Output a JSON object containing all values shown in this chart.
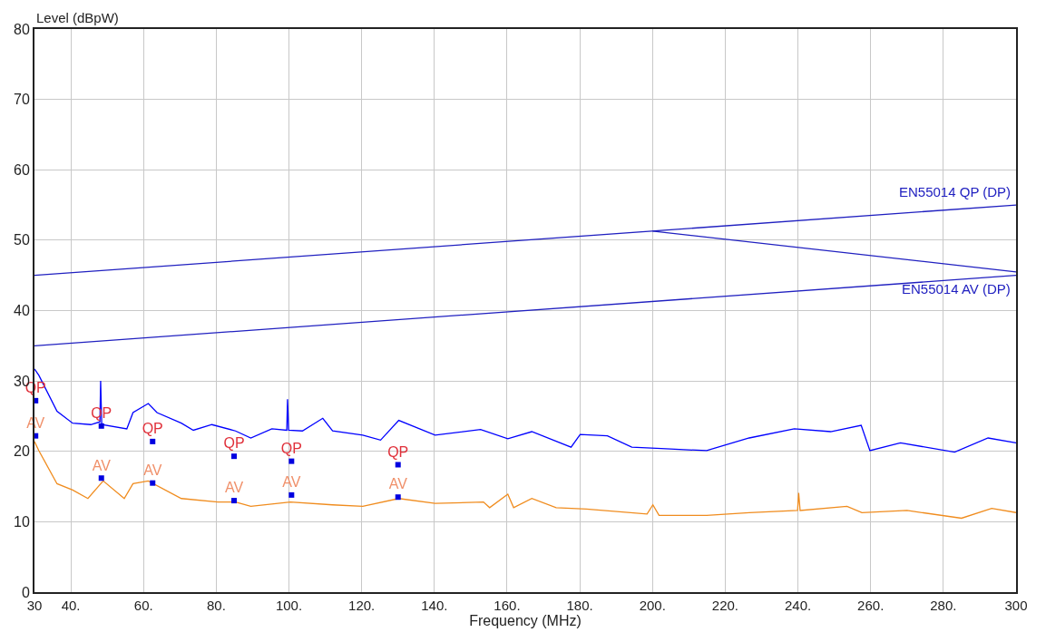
{
  "chart_data": {
    "type": "line",
    "xlabel": "Frequency (MHz)",
    "ylabel": "Level (dBpW)",
    "xlim": [
      30,
      300
    ],
    "ylim": [
      0,
      80
    ],
    "xticks": [
      30,
      {
        "value": 40,
        "label": "40."
      },
      {
        "value": 60,
        "label": "60."
      },
      {
        "value": 80,
        "label": "80."
      },
      {
        "value": 100,
        "label": "100."
      },
      {
        "value": 120,
        "label": "120."
      },
      {
        "value": 140,
        "label": "140."
      },
      {
        "value": 160,
        "label": "160."
      },
      {
        "value": 180,
        "label": "180."
      },
      {
        "value": 200,
        "label": "200."
      },
      {
        "value": 220,
        "label": "220."
      },
      {
        "value": 240,
        "label": "240."
      },
      {
        "value": 260,
        "label": "260."
      },
      {
        "value": 280,
        "label": "280."
      },
      300
    ],
    "yticks": [
      0,
      10,
      20,
      30,
      40,
      50,
      60,
      70,
      80
    ],
    "grid": true,
    "legend": false,
    "marker": "none",
    "line_style": "solid",
    "series": [
      {
        "name": "EN55014 QP (DP)",
        "color": "#2020c0",
        "x": [
          30,
          300
        ],
        "values": [
          45,
          55
        ]
      },
      {
        "name": "EN55014 AV (DP)",
        "color": "#2020c0",
        "x": [
          30,
          300
        ],
        "values": [
          35,
          45
        ]
      },
      {
        "color": "#2020c0",
        "x": [
          200,
          300
        ],
        "values": [
          51.3,
          45.5
        ]
      },
      {
        "color": "#0000ff",
        "x": [
          30,
          31.2,
          36.2,
          40.5,
          45.5,
          48.0,
          48.2,
          48.5,
          55.4,
          57.1,
          61.3,
          63.7,
          70.4,
          73.7,
          78.8,
          85.3,
          89.5,
          95.3,
          99.4,
          99.6,
          99.9,
          103.7,
          109.3,
          112,
          120.3,
          125.2,
          130.2,
          140.2,
          152.7,
          160.2,
          166.8,
          177.6,
          180.1,
          187.6,
          194.3,
          202.4,
          214.9,
          226.6,
          239,
          249,
          257.4,
          259.8,
          268.2,
          283.1,
          292.3,
          300
        ],
        "values": [
          31.7,
          30.8,
          25.7,
          24.0,
          23.8,
          24.2,
          30.0,
          23.8,
          23.2,
          25.5,
          26.8,
          25.5,
          24.0,
          23.0,
          23.8,
          22.9,
          21.9,
          23.2,
          23.0,
          27.4,
          23.0,
          22.9,
          24.7,
          22.9,
          22.3,
          21.6,
          24.4,
          22.3,
          23.1,
          21.8,
          22.8,
          20.6,
          22.4,
          22.2,
          20.6,
          20.4,
          20.1,
          21.9,
          23.2,
          22.8,
          23.7,
          20.1,
          21.2,
          19.9,
          21.9,
          21.2
        ]
      },
      {
        "color": "#f08c1e",
        "x": [
          30,
          31.2,
          36.2,
          40.5,
          44.7,
          48.9,
          54.7,
          57.1,
          61.3,
          70.4,
          80.4,
          85.3,
          89.5,
          100.4,
          112,
          120.3,
          130.2,
          140.2,
          153.5,
          155.2,
          160.2,
          161.8,
          166.8,
          173.5,
          181.8,
          198.5,
          200.1,
          201.8,
          214.9,
          226.6,
          239.9,
          240.2,
          240.6,
          253.5,
          257.6,
          270,
          285,
          293.3,
          300
        ],
        "values": [
          21.4,
          20.1,
          15.4,
          14.5,
          13.3,
          15.8,
          13.3,
          15.4,
          15.8,
          13.3,
          12.8,
          12.8,
          12.2,
          12.8,
          12.4,
          12.2,
          13.3,
          12.6,
          12.8,
          12.0,
          13.9,
          12.0,
          13.3,
          12.0,
          11.8,
          11.1,
          12.4,
          10.9,
          10.9,
          11.3,
          11.6,
          14.1,
          11.6,
          12.2,
          11.3,
          11.6,
          10.5,
          11.9,
          11.3
        ]
      },
      {
        "type": "scatter",
        "marker": "square",
        "color": "#0000e0",
        "x": [
          30.3,
          48.4,
          62.5,
          84.9,
          100.7,
          130.0
        ],
        "values": [
          27.2,
          23.6,
          21.4,
          19.3,
          18.6,
          18.1
        ],
        "value_labels": [
          "QP",
          "QP",
          "QP",
          "QP",
          "QP",
          "QP"
        ]
      },
      {
        "type": "scatter",
        "marker": "square",
        "color": "#0000e0",
        "x": [
          30.3,
          48.4,
          62.5,
          84.9,
          100.7,
          130.0
        ],
        "values": [
          22.2,
          16.2,
          15.5,
          13.0,
          13.8,
          13.5
        ],
        "value_labels": [
          "AV",
          "AV",
          "AV",
          "AV",
          "AV",
          "AV"
        ]
      }
    ]
  }
}
